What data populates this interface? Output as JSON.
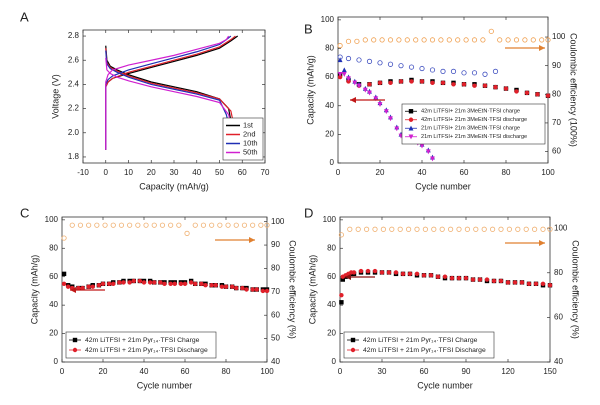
{
  "chart_data": [
    {
      "type": "line",
      "label": "A",
      "xlabel": "Capacity (mAh/g)",
      "ylabel": "Voltage (V)",
      "xlim": [
        -10,
        70
      ],
      "xticks": [
        -10,
        0,
        10,
        20,
        30,
        40,
        50,
        60,
        70
      ],
      "ylim": [
        1.75,
        2.85
      ],
      "yticks": [
        1.8,
        {
          "value": 2,
          "label": "2.0"
        },
        2.2,
        2.4,
        2.6,
        2.8
      ],
      "legend": "lower right",
      "series": [
        {
          "name": "1st",
          "color": "#000000",
          "x": [
            0,
            0.5,
            2,
            5,
            10,
            20,
            30,
            40,
            50,
            54,
            56,
            57,
            null,
            0,
            0,
            1,
            3,
            10,
            20,
            30,
            40,
            50,
            55,
            58
          ],
          "values": [
            2.72,
            2.6,
            2.55,
            2.52,
            2.48,
            2.42,
            2.38,
            2.34,
            2.28,
            2.2,
            2.0,
            1.8,
            null,
            1.86,
            2.38,
            2.42,
            2.45,
            2.49,
            2.54,
            2.59,
            2.64,
            2.7,
            2.76,
            2.8
          ]
        },
        {
          "name": "2nd",
          "color": "#e0202a",
          "x": [
            0,
            0.5,
            2,
            5,
            10,
            20,
            30,
            40,
            50,
            55,
            57,
            57.5,
            null,
            0,
            0,
            1,
            3,
            10,
            20,
            30,
            40,
            50,
            55,
            57
          ],
          "values": [
            2.7,
            2.58,
            2.54,
            2.51,
            2.47,
            2.41,
            2.37,
            2.33,
            2.28,
            2.18,
            2.0,
            1.8,
            null,
            1.86,
            2.38,
            2.42,
            2.45,
            2.5,
            2.55,
            2.6,
            2.65,
            2.71,
            2.77,
            2.8
          ]
        },
        {
          "name": "10th",
          "color": "#1f2fb4",
          "x": [
            0,
            0.5,
            2,
            5,
            10,
            20,
            30,
            40,
            50,
            53,
            55,
            55.5,
            null,
            0,
            0,
            1,
            3,
            10,
            20,
            30,
            40,
            50,
            53,
            55
          ],
          "values": [
            2.68,
            2.57,
            2.53,
            2.5,
            2.46,
            2.4,
            2.36,
            2.32,
            2.27,
            2.15,
            2.0,
            1.8,
            null,
            1.86,
            2.4,
            2.44,
            2.47,
            2.52,
            2.57,
            2.62,
            2.67,
            2.73,
            2.77,
            2.8
          ]
        },
        {
          "name": "50th",
          "color": "#d020d0",
          "x": [
            0,
            0.5,
            2,
            5,
            10,
            20,
            30,
            40,
            50,
            54,
            56,
            56.5,
            null,
            0,
            0,
            1,
            3,
            10,
            20,
            30,
            40,
            50,
            53,
            54
          ],
          "values": [
            2.62,
            2.52,
            2.49,
            2.46,
            2.43,
            2.38,
            2.34,
            2.3,
            2.25,
            2.15,
            2.0,
            1.8,
            null,
            1.86,
            2.42,
            2.48,
            2.52,
            2.56,
            2.6,
            2.64,
            2.69,
            2.74,
            2.77,
            2.8
          ]
        }
      ]
    },
    {
      "type": "scatter",
      "label": "B",
      "xlabel": "Cycle number",
      "ylabel": "Capacity (mAh/g)",
      "y2label": "Coulombic efficiency (100%)",
      "xlim": [
        0,
        100
      ],
      "xticks": [
        0,
        20,
        40,
        60,
        80,
        100
      ],
      "ylim": [
        0,
        102
      ],
      "yticks": [
        0,
        20,
        40,
        60,
        80,
        100
      ],
      "y2lim": [
        56,
        107
      ],
      "y2ticks": [
        60,
        70,
        80,
        90,
        100
      ],
      "legend": "center right",
      "series": [
        {
          "name": "42m LiTFSI+ 21m 3MeEtN·TFSI charge",
          "color": "#000000",
          "marker": "square",
          "x": [
            1,
            5,
            10,
            15,
            20,
            25,
            30,
            35,
            40,
            45,
            50,
            55,
            60,
            65,
            70,
            75,
            80,
            85,
            90,
            95,
            100
          ],
          "values": [
            62,
            58,
            55,
            55,
            56,
            57,
            57,
            58,
            57,
            57,
            56,
            56,
            55,
            55,
            54,
            53,
            52,
            51,
            49,
            48,
            47
          ]
        },
        {
          "name": "42m LiTFSI+ 21m 3MeEtN·TFSI  discharge",
          "color": "#e0202a",
          "marker": "circle",
          "x": [
            1,
            5,
            10,
            15,
            20,
            25,
            30,
            35,
            40,
            45,
            50,
            55,
            60,
            65,
            70,
            75,
            80,
            85,
            90,
            95,
            100
          ],
          "values": [
            60,
            57,
            54,
            55,
            56,
            56,
            57,
            57,
            57,
            56,
            56,
            55,
            55,
            54,
            54,
            53,
            52,
            50,
            49,
            48,
            47
          ]
        },
        {
          "name": "21m LiTFSI+ 21m 3MeEtN·TFSI charge",
          "color": "#1f2fb4",
          "marker": "triangle",
          "x": [
            1,
            3,
            5,
            8,
            10,
            13,
            15,
            18,
            20,
            23,
            25,
            28,
            30,
            33,
            35,
            38,
            40,
            43,
            45
          ],
          "values": [
            72,
            65,
            60,
            57,
            55,
            52,
            50,
            46,
            42,
            37,
            32,
            25,
            20,
            17,
            16,
            15,
            13,
            9,
            4
          ]
        },
        {
          "name": "21m LiTFSI+ 21m 3MeEtN·TFSI discharge",
          "color": "#d020d0",
          "marker": "triangle-down",
          "x": [
            1,
            3,
            5,
            8,
            10,
            13,
            15,
            18,
            20,
            23,
            25,
            28,
            30,
            33,
            35,
            38,
            40,
            43,
            45
          ],
          "values": [
            62,
            62,
            59,
            56,
            54,
            51,
            49,
            45,
            41,
            36,
            31,
            24,
            19,
            16,
            15,
            14,
            12,
            8,
            3
          ]
        },
        {
          "color": "#f0a050",
          "marker": "open-circle",
          "axis": "y2",
          "x": [
            1,
            5,
            9,
            13,
            17,
            21,
            25,
            29,
            33,
            37,
            41,
            45,
            49,
            53,
            57,
            61,
            65,
            69,
            73,
            77,
            81,
            85,
            89,
            93,
            97,
            100
          ],
          "values": [
            97,
            98.5,
            98.5,
            99,
            99,
            99,
            99,
            99,
            99,
            99,
            99,
            99,
            99,
            99,
            99,
            99,
            99,
            99,
            102,
            99,
            99,
            99,
            99,
            99,
            99,
            99
          ]
        },
        {
          "color": "#4050c0",
          "marker": "open-circle",
          "axis": "y2",
          "x": [
            1,
            5,
            10,
            15,
            20,
            25,
            30,
            35,
            40,
            45,
            50,
            55,
            60,
            65,
            70,
            75
          ],
          "values": [
            93,
            92.5,
            92,
            91.5,
            91,
            90.5,
            90,
            89.5,
            89,
            88.5,
            88,
            88,
            87.5,
            87.5,
            87,
            88
          ]
        }
      ]
    },
    {
      "type": "scatter",
      "label": "C",
      "xlabel": "Cycle number",
      "ylabel": "Capacity (mAh/g)",
      "y2label": "Coulombic efficiency (%)",
      "xlim": [
        0,
        100
      ],
      "xticks": [
        0,
        20,
        40,
        60,
        80,
        100
      ],
      "ylim": [
        0,
        102
      ],
      "yticks": [
        0,
        20,
        40,
        60,
        80,
        100
      ],
      "y2lim": [
        40,
        102
      ],
      "y2ticks": [
        40,
        50,
        60,
        70,
        80,
        90,
        100
      ],
      "legend": "lower left",
      "series": [
        {
          "name": "42m LiTFSI + 21m Pyr₁₄·TFSI Charge",
          "color": "#000000",
          "marker": "square",
          "x": [
            1,
            3,
            5,
            8,
            10,
            13,
            15,
            18,
            20,
            23,
            25,
            28,
            30,
            33,
            35,
            38,
            40,
            43,
            45,
            48,
            50,
            53,
            55,
            58,
            60,
            63,
            65,
            68,
            70,
            73,
            75,
            78,
            80,
            83,
            85,
            88,
            90,
            93,
            95,
            98,
            100
          ],
          "values": [
            62,
            54,
            53,
            52,
            52,
            53,
            54,
            54,
            55,
            55,
            56,
            56,
            57,
            57,
            57,
            57,
            57,
            57,
            56,
            56,
            56,
            56,
            56,
            56,
            56,
            57,
            55,
            55,
            55,
            54,
            54,
            54,
            53,
            53,
            52,
            52,
            52,
            51,
            51,
            51,
            51
          ]
        },
        {
          "name": "42m LiTFSI + 21m Pyr₁₄·TFSI Discharge",
          "color": "#e0202a",
          "marker": "circle",
          "x": [
            1,
            3,
            5,
            8,
            10,
            13,
            15,
            18,
            20,
            23,
            25,
            28,
            30,
            33,
            35,
            38,
            40,
            43,
            45,
            48,
            50,
            53,
            55,
            58,
            60,
            63,
            65,
            68,
            70,
            73,
            75,
            78,
            80,
            83,
            85,
            88,
            90,
            93,
            95,
            98,
            100
          ],
          "values": [
            55,
            53,
            52,
            52,
            52,
            53,
            53,
            54,
            55,
            55,
            55,
            56,
            56,
            56,
            57,
            57,
            56,
            56,
            56,
            56,
            55,
            55,
            55,
            55,
            55,
            56,
            55,
            55,
            54,
            54,
            54,
            53,
            53,
            53,
            52,
            52,
            51,
            51,
            51,
            50,
            50
          ]
        },
        {
          "color": "#f0b070",
          "marker": "open-circle",
          "axis": "y2",
          "x": [
            1,
            5,
            9,
            13,
            17,
            21,
            25,
            29,
            33,
            37,
            41,
            45,
            49,
            53,
            57,
            61,
            65,
            69,
            73,
            77,
            81,
            85,
            89,
            93,
            97,
            100
          ],
          "values": [
            93,
            98.5,
            98.5,
            98.5,
            98.5,
            98.5,
            98.5,
            98.5,
            98.5,
            98.5,
            98.5,
            98.5,
            98.5,
            98.5,
            98.5,
            95,
            98.5,
            98.5,
            98.5,
            98.5,
            98.5,
            98.5,
            98.5,
            98.5,
            98.5,
            98.5
          ]
        }
      ]
    },
    {
      "type": "scatter",
      "label": "D",
      "xlabel": "Cycle number",
      "ylabel": "Capacity (mAh/g)",
      "y2label": "Coulombic efficiency (%)",
      "xlim": [
        0,
        150
      ],
      "xticks": [
        0,
        30,
        60,
        90,
        120,
        150
      ],
      "ylim": [
        0,
        102
      ],
      "yticks": [
        0,
        20,
        40,
        60,
        80,
        100
      ],
      "y2lim": [
        40,
        105
      ],
      "y2ticks": [
        40,
        60,
        80,
        100
      ],
      "legend": "lower left",
      "series": [
        {
          "name": "42m LiTFSI + 21m Pyr₁₄·TFSI Charge",
          "color": "#000000",
          "marker": "square",
          "x": [
            1,
            2,
            4,
            6,
            8,
            10,
            15,
            20,
            25,
            30,
            35,
            40,
            45,
            50,
            55,
            60,
            65,
            70,
            75,
            80,
            85,
            90,
            95,
            100,
            105,
            110,
            115,
            120,
            125,
            130,
            135,
            140,
            145,
            150
          ],
          "values": [
            42,
            58,
            60,
            61,
            62,
            62,
            63,
            63,
            63,
            63,
            63,
            62,
            62,
            62,
            61,
            61,
            61,
            60,
            59,
            59,
            59,
            59,
            58,
            58,
            57,
            57,
            57,
            56,
            56,
            56,
            55,
            55,
            54,
            54
          ]
        },
        {
          "name": "42m LiTFSI + 21m Pyr₁₄·TFSI Discharge",
          "color": "#e0202a",
          "marker": "circle",
          "x": [
            1,
            2,
            4,
            6,
            8,
            10,
            15,
            20,
            25,
            30,
            35,
            40,
            45,
            50,
            55,
            60,
            65,
            70,
            75,
            80,
            85,
            90,
            95,
            100,
            105,
            110,
            115,
            120,
            125,
            130,
            135,
            140,
            145,
            150
          ],
          "values": [
            47,
            60,
            61,
            62,
            63,
            63,
            64,
            64,
            64,
            63,
            63,
            63,
            62,
            62,
            62,
            61,
            61,
            60,
            60,
            59,
            59,
            59,
            58,
            58,
            58,
            57,
            57,
            56,
            56,
            56,
            55,
            55,
            55,
            54
          ]
        },
        {
          "color": "#f0b070",
          "marker": "open-circle",
          "axis": "y2",
          "x": [
            1,
            7,
            13,
            19,
            25,
            31,
            37,
            43,
            49,
            55,
            61,
            67,
            73,
            79,
            85,
            91,
            97,
            103,
            109,
            115,
            121,
            127,
            133,
            139,
            145,
            150
          ],
          "values": [
            97,
            99.5,
            99.5,
            99.5,
            99.5,
            99.5,
            99.5,
            99.5,
            99.5,
            99.5,
            99.5,
            99.5,
            99.5,
            99.5,
            99.5,
            99.5,
            99.5,
            99.5,
            99.5,
            99.5,
            99.5,
            99.5,
            99.5,
            99.5,
            99.5,
            99.5
          ]
        }
      ]
    }
  ]
}
